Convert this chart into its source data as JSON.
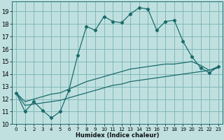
{
  "xlabel": "Humidex (Indice chaleur)",
  "bg_color": "#c0e0e0",
  "grid_color": "#80b8b8",
  "line_color": "#1a6b6b",
  "xlim": [
    -0.5,
    23.5
  ],
  "ylim": [
    10.0,
    19.8
  ],
  "yticks": [
    10,
    11,
    12,
    13,
    14,
    15,
    16,
    17,
    18,
    19
  ],
  "xticks": [
    0,
    1,
    2,
    3,
    4,
    5,
    6,
    7,
    8,
    9,
    10,
    11,
    12,
    13,
    14,
    15,
    16,
    17,
    18,
    19,
    20,
    21,
    22,
    23
  ],
  "series1_x": [
    0,
    1,
    2,
    3,
    4,
    5,
    6,
    7,
    8,
    9,
    10,
    11,
    12,
    13,
    14,
    15,
    16,
    17,
    18,
    19,
    20,
    21,
    22,
    23
  ],
  "series1_y": [
    12.5,
    11.0,
    11.8,
    11.1,
    10.5,
    11.0,
    12.7,
    15.5,
    17.8,
    17.5,
    18.6,
    18.2,
    18.1,
    18.8,
    19.3,
    19.2,
    17.5,
    18.2,
    18.3,
    16.6,
    15.4,
    14.5,
    14.1,
    14.6
  ],
  "series2_x": [
    0,
    23
  ],
  "series2_y": [
    12.5,
    14.6
  ],
  "series3_x": [
    0,
    23
  ],
  "series3_y": [
    12.5,
    14.6
  ],
  "trend1_x": [
    0,
    1,
    2,
    3,
    4,
    5,
    6,
    7,
    8,
    9,
    10,
    11,
    12,
    13,
    14,
    15,
    16,
    17,
    18,
    19,
    20,
    21,
    22,
    23
  ],
  "trend1_y": [
    12.5,
    11.8,
    12.0,
    12.2,
    12.4,
    12.5,
    12.8,
    13.1,
    13.4,
    13.6,
    13.8,
    14.0,
    14.2,
    14.4,
    14.5,
    14.6,
    14.7,
    14.8,
    14.8,
    14.9,
    15.0,
    14.7,
    14.3,
    14.6
  ],
  "trend2_x": [
    0,
    1,
    2,
    3,
    4,
    5,
    6,
    7,
    8,
    9,
    10,
    11,
    12,
    13,
    14,
    15,
    16,
    17,
    18,
    19,
    20,
    21,
    22,
    23
  ],
  "trend2_y": [
    12.5,
    11.5,
    11.6,
    11.7,
    11.8,
    11.9,
    12.1,
    12.3,
    12.5,
    12.7,
    12.9,
    13.1,
    13.2,
    13.4,
    13.5,
    13.6,
    13.7,
    13.8,
    13.9,
    14.0,
    14.1,
    14.2,
    14.3,
    14.5
  ]
}
